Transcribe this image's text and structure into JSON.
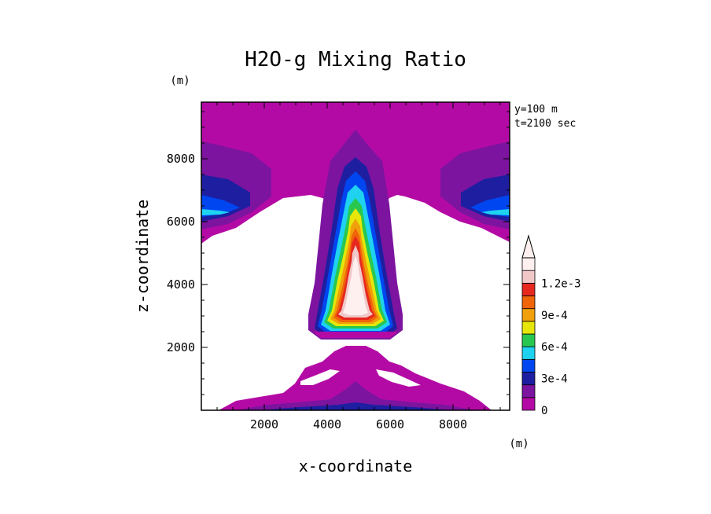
{
  "chart_data": {
    "type": "heatmap",
    "title": "H2O-g Mixing Ratio",
    "xlabel": "x-coordinate",
    "ylabel": "z-coordinate",
    "x_unit": "(m)",
    "y_unit": "(m)",
    "annotations": [
      "y=100 m",
      "t=2100 sec"
    ],
    "xlim": [
      0,
      9800
    ],
    "ylim": [
      0,
      9800
    ],
    "x_ticks": [
      "2000",
      "4000",
      "6000",
      "8000"
    ],
    "y_ticks": [
      "2000",
      "4000",
      "6000",
      "8000"
    ],
    "colorbar": {
      "levels": [
        0,
        0.00015,
        0.0003,
        0.00045,
        0.0006,
        0.00075,
        0.0009,
        0.00105,
        0.0012
      ],
      "tick_labels": [
        "0",
        "3e-4",
        "6e-4",
        "9e-4",
        "1.2e-3"
      ],
      "colors": [
        "#b40aa5",
        "#7c14a0",
        "#1e1ea0",
        "#0046f0",
        "#1ed2f0",
        "#28c850",
        "#e6e60a",
        "#f0a00a",
        "#f0640a",
        "#e6281e",
        "#f0c8c8",
        "#fff0f0"
      ],
      "extends": "max"
    }
  }
}
